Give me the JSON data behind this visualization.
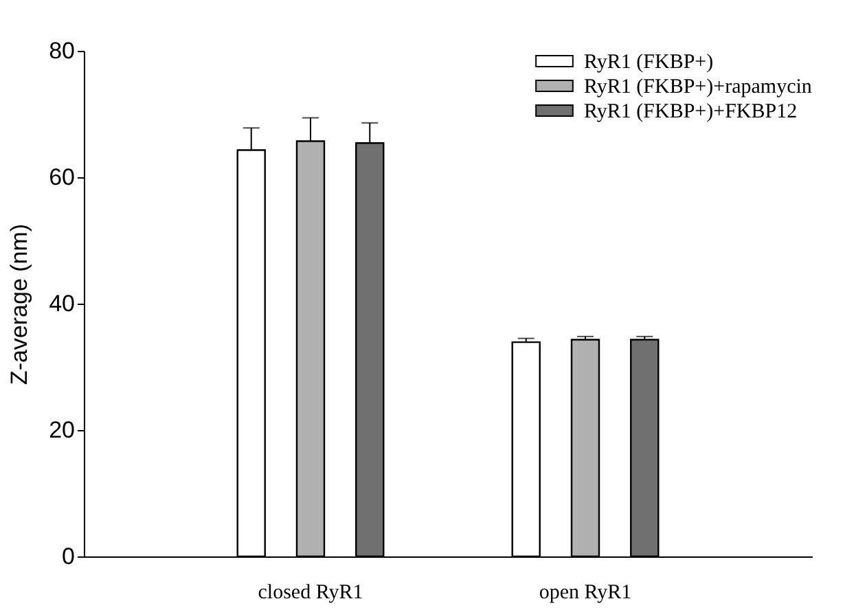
{
  "chart_data": {
    "type": "bar",
    "ylabel": "Z-average (nm)",
    "categories": [
      "closed RyR1",
      "open RyR1"
    ],
    "series": [
      {
        "name": "RyR1 (FKBP+)",
        "color": "#ffffff",
        "values": [
          64.3,
          33.9
        ],
        "errors": [
          3.5,
          0.6
        ]
      },
      {
        "name": "RyR1 (FKBP+)+rapamycin",
        "color": "#b0b0b0",
        "values": [
          65.7,
          34.3
        ],
        "errors": [
          3.7,
          0.5
        ]
      },
      {
        "name": "RyR1 (FKBP+)+FKBP12",
        "color": "#707070",
        "values": [
          65.4,
          34.3
        ],
        "errors": [
          3.2,
          0.5
        ]
      }
    ],
    "ylim": [
      0,
      80
    ],
    "yticks": [
      0,
      20,
      40,
      60,
      80
    ],
    "grid": false,
    "legend": "top right"
  }
}
